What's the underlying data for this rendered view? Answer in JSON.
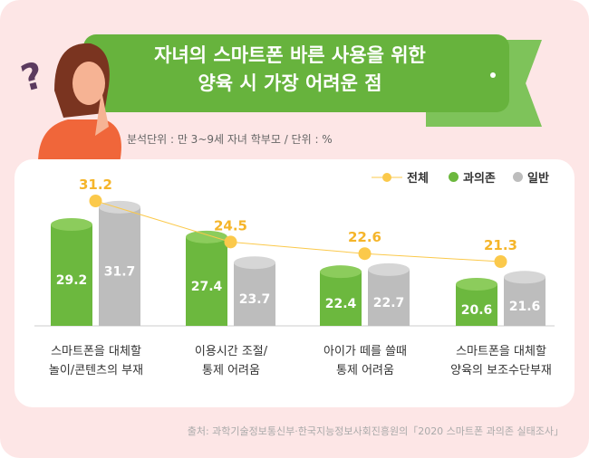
{
  "header": {
    "title_line1": "자녀의 스마트폰 바른 사용을 위한",
    "title_line2": "양육 시 가장 어려운 점",
    "subtitle": "분석단위 : 만 3~9세 자녀 학부모 / 단위 : %"
  },
  "source": "출처: 과학기술정보통신부·한국지능정보사회진흥원의「2020 스마트폰 과의존 실태조사」",
  "colors": {
    "background": "#fde6e6",
    "ribbon": "#67b33d",
    "overall": "#fbc94b",
    "dependent": "#6cb83e",
    "general": "#bdbdbd"
  },
  "chart_data": {
    "type": "bar",
    "categories": [
      [
        "스마트폰을 대체할",
        "놀이/콘텐츠의 부재"
      ],
      [
        "이용시간 조절/",
        "통제 어려움"
      ],
      [
        "아이가 떼를 쓸때",
        "통제 어려움"
      ],
      [
        "스마트폰을 대체할",
        "양육의 보조수단부재"
      ]
    ],
    "series": [
      {
        "name": "전체",
        "type": "line",
        "values": [
          31.2,
          24.5,
          22.6,
          21.3
        ]
      },
      {
        "name": "과의존",
        "type": "bar",
        "values": [
          29.2,
          27.4,
          22.4,
          20.6
        ]
      },
      {
        "name": "일반",
        "type": "bar",
        "values": [
          31.7,
          23.7,
          22.7,
          21.6
        ]
      }
    ],
    "legend": "top-right",
    "grid": false
  }
}
